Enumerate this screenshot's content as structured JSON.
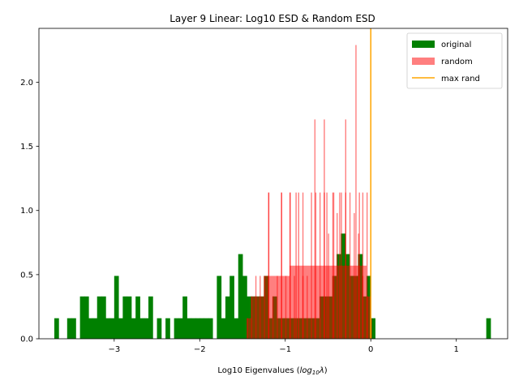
{
  "colors": {
    "original": "#008000",
    "random": "#ff0000",
    "random_alpha": 0.5,
    "max_rand": "#ffa500"
  },
  "chart_data": {
    "type": "bar",
    "title": "Layer 9 Linear: Log10 ESD & Random ESD",
    "xlabel_main": "Log10 Eigenvalues (",
    "xlabel_math": "log",
    "xlabel_sub": "10",
    "xlabel_lambda": "λ",
    "xlabel_close": ")",
    "ylabel": "",
    "xlim": [
      -3.88,
      1.6
    ],
    "ylim": [
      0,
      2.42
    ],
    "xticks": [
      {
        "value": -3,
        "label": "−3"
      },
      {
        "value": -2,
        "label": "−2"
      },
      {
        "value": -1,
        "label": "−1"
      },
      {
        "value": 0,
        "label": "0"
      },
      {
        "value": 1,
        "label": "1"
      }
    ],
    "yticks": [
      {
        "value": 0.0,
        "label": "0.0"
      },
      {
        "value": 0.5,
        "label": "0.5"
      },
      {
        "value": 1.0,
        "label": "1.0"
      },
      {
        "value": 1.5,
        "label": "1.5"
      },
      {
        "value": 2.0,
        "label": "2.0"
      }
    ],
    "legend": {
      "placement": "top-right",
      "entries": [
        {
          "label": "original",
          "kind": "patch",
          "series": "original"
        },
        {
          "label": "random",
          "kind": "patch",
          "series": "random"
        },
        {
          "label": "max rand",
          "kind": "line",
          "series": "max_rand"
        }
      ]
    },
    "series": [
      {
        "name": "original",
        "bin_width": 0.0505,
        "bins": [
          [
            -3.7,
            0.16
          ],
          [
            -3.55,
            0.16
          ],
          [
            -3.5,
            0.16
          ],
          [
            -3.4,
            0.33
          ],
          [
            -3.35,
            0.33
          ],
          [
            -3.3,
            0.16
          ],
          [
            -3.25,
            0.16
          ],
          [
            -3.2,
            0.33
          ],
          [
            -3.15,
            0.33
          ],
          [
            -3.1,
            0.16
          ],
          [
            -3.05,
            0.16
          ],
          [
            -3.0,
            0.49
          ],
          [
            -2.95,
            0.16
          ],
          [
            -2.9,
            0.33
          ],
          [
            -2.85,
            0.33
          ],
          [
            -2.8,
            0.16
          ],
          [
            -2.75,
            0.33
          ],
          [
            -2.7,
            0.16
          ],
          [
            -2.65,
            0.16
          ],
          [
            -2.6,
            0.33
          ],
          [
            -2.5,
            0.16
          ],
          [
            -2.4,
            0.16
          ],
          [
            -2.3,
            0.16
          ],
          [
            -2.25,
            0.16
          ],
          [
            -2.2,
            0.33
          ],
          [
            -2.15,
            0.16
          ],
          [
            -2.1,
            0.16
          ],
          [
            -2.05,
            0.16
          ],
          [
            -2.0,
            0.16
          ],
          [
            -1.95,
            0.16
          ],
          [
            -1.9,
            0.16
          ],
          [
            -1.8,
            0.49
          ],
          [
            -1.75,
            0.16
          ],
          [
            -1.7,
            0.33
          ],
          [
            -1.65,
            0.49
          ],
          [
            -1.6,
            0.16
          ],
          [
            -1.55,
            0.66
          ],
          [
            -1.5,
            0.49
          ],
          [
            -1.45,
            0.33
          ],
          [
            -1.4,
            0.33
          ],
          [
            -1.35,
            0.33
          ],
          [
            -1.3,
            0.33
          ],
          [
            -1.25,
            0.49
          ],
          [
            -1.2,
            0.16
          ],
          [
            -1.15,
            0.33
          ],
          [
            -1.1,
            0.16
          ],
          [
            -1.05,
            0.16
          ],
          [
            -1.0,
            0.16
          ],
          [
            -0.95,
            0.16
          ],
          [
            -0.9,
            0.16
          ],
          [
            -0.85,
            0.16
          ],
          [
            -0.8,
            0.16
          ],
          [
            -0.75,
            0.16
          ],
          [
            -0.7,
            0.16
          ],
          [
            -0.65,
            0.16
          ],
          [
            -0.6,
            0.33
          ],
          [
            -0.55,
            0.33
          ],
          [
            -0.5,
            0.33
          ],
          [
            -0.45,
            0.49
          ],
          [
            -0.4,
            0.66
          ],
          [
            -0.35,
            0.82
          ],
          [
            -0.3,
            0.66
          ],
          [
            -0.25,
            0.49
          ],
          [
            -0.2,
            0.49
          ],
          [
            -0.15,
            0.66
          ],
          [
            -0.1,
            0.33
          ],
          [
            -0.05,
            0.49
          ],
          [
            0.0,
            0.16
          ],
          [
            1.35,
            0.16
          ]
        ]
      },
      {
        "name": "random",
        "bin_width": 0.0134,
        "bins": [
          [
            -1.45,
            0.16
          ],
          [
            -1.4,
            0.33
          ],
          [
            -1.35,
            0.49
          ],
          [
            -1.3,
            0.49
          ],
          [
            -1.25,
            0.49
          ],
          [
            -1.2,
            1.14
          ],
          [
            -1.15,
            0.33
          ],
          [
            -1.1,
            0.49
          ],
          [
            -1.05,
            1.14
          ],
          [
            -1.0,
            0.49
          ],
          [
            -0.95,
            1.14
          ],
          [
            -0.9,
            0.49
          ],
          [
            -0.85,
            1.14
          ],
          [
            -0.8,
            0.49
          ],
          [
            -0.75,
            0.49
          ],
          [
            -0.7,
            1.14
          ],
          [
            -0.65,
            1.14
          ],
          [
            -0.6,
            1.14
          ],
          [
            -0.55,
            1.14
          ],
          [
            -0.5,
            0.82
          ],
          [
            -0.45,
            1.14
          ],
          [
            -0.4,
            0.98
          ],
          [
            -0.35,
            1.14
          ],
          [
            -0.3,
            1.14
          ],
          [
            -0.25,
            1.14
          ],
          [
            -0.2,
            0.98
          ],
          [
            -0.15,
            0.82
          ],
          [
            -0.1,
            0.49
          ],
          [
            -0.05,
            0.33
          ],
          [
            0.0,
            0.16
          ]
        ],
        "envelope": [
          [
            -1.45,
            -1.4,
            0.16
          ],
          [
            -1.4,
            -1.25,
            0.33
          ],
          [
            -1.25,
            -1.1,
            0.49
          ],
          [
            -1.1,
            -0.95,
            0.49
          ],
          [
            -0.95,
            -0.7,
            0.57
          ],
          [
            -0.7,
            -0.05,
            0.57
          ],
          [
            -0.05,
            0.0,
            0.33
          ]
        ],
        "spikes": [
          [
            -1.2,
            1.14
          ],
          [
            -1.05,
            1.14
          ],
          [
            -0.95,
            1.14
          ],
          [
            -0.88,
            1.14
          ],
          [
            -0.8,
            1.14
          ],
          [
            -0.66,
            1.71
          ],
          [
            -0.55,
            1.71
          ],
          [
            -0.52,
            1.14
          ],
          [
            -0.44,
            1.14
          ],
          [
            -0.37,
            1.14
          ],
          [
            -0.3,
            1.71
          ],
          [
            -0.18,
            2.29
          ],
          [
            -0.14,
            1.14
          ],
          [
            -0.1,
            1.14
          ],
          [
            -0.05,
            1.14
          ]
        ]
      }
    ],
    "max_rand": 0.0
  }
}
